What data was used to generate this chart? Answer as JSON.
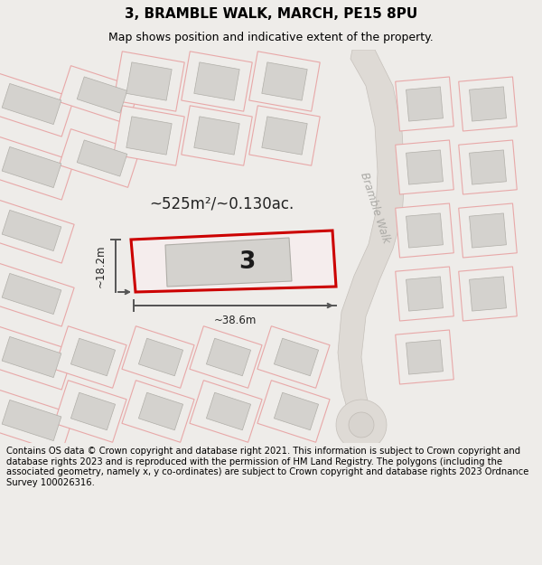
{
  "title": "3, BRAMBLE WALK, MARCH, PE15 8PU",
  "subtitle": "Map shows position and indicative extent of the property.",
  "footer": "Contains OS data © Crown copyright and database right 2021. This information is subject to Crown copyright and database rights 2023 and is reproduced with the permission of HM Land Registry. The polygons (including the associated geometry, namely x, y co-ordinates) are subject to Crown copyright and database rights 2023 Ordnance Survey 100026316.",
  "plot_number": "3",
  "area_label": "~525m²/~0.130ac.",
  "width_label": "~38.6m",
  "height_label": "~18.2m",
  "road_label": "Bramble Walk",
  "highlight_color": "#cc0000",
  "map_bg": "#eeece9",
  "building_fill": "#d4d2ce",
  "building_edge": "#b0aea8",
  "parcel_color": "#e8a8a8",
  "road_fill": "#dedad5",
  "road_edge": "#c5c0ba",
  "footer_bg": "#ffffff",
  "title_fontsize": 11,
  "subtitle_fontsize": 9,
  "footer_fontsize": 7.2,
  "annotation_color": "#222222"
}
